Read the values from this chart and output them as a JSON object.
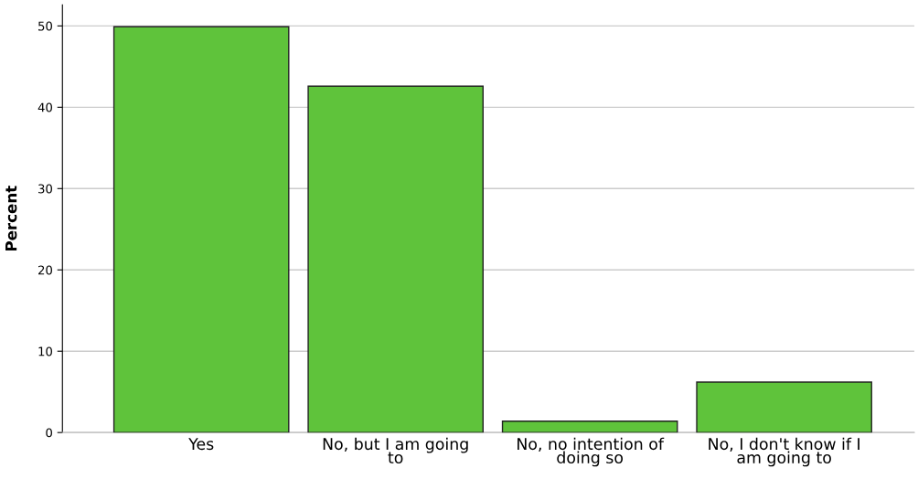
{
  "chart_data": {
    "type": "bar",
    "ylabel": "Percent",
    "categories": [
      "Yes",
      "No, but I am going\nto",
      "No, no intention of\ndoing so",
      "No, I don't know if I\nam going to"
    ],
    "values": [
      49.9,
      42.6,
      1.4,
      6.2
    ],
    "color": "#5fc33b",
    "ylim": [
      0,
      52.6
    ],
    "yticks": [
      0,
      10,
      20,
      30,
      40,
      50
    ],
    "grid": "y"
  }
}
